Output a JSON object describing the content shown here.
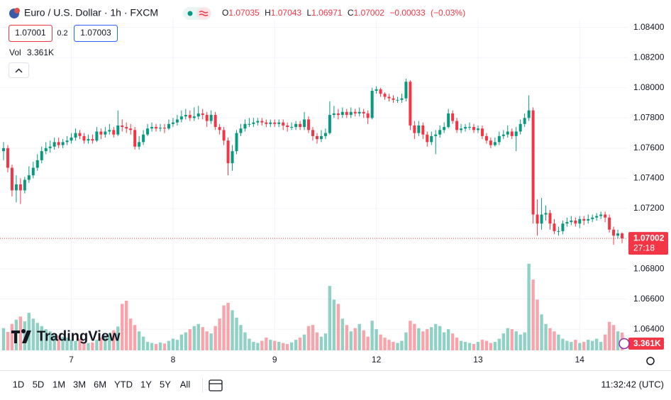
{
  "header": {
    "symbol": "Euro / U.S. Dollar · 1h · FXCM",
    "o": "O",
    "h": "H",
    "l": "L",
    "c": "C",
    "change": "−0.00033",
    "change_pct": "(−0.03%)",
    "bid": "1.07001",
    "spread": "0.2",
    "ask": "1.07003",
    "vol_label": "Vol",
    "countdown": "27:18"
  },
  "logo": "TradingView",
  "toolbar": {
    "ranges": [
      "1D",
      "5D",
      "1M",
      "3M",
      "6M",
      "YTD",
      "1Y",
      "5Y",
      "All"
    ],
    "clock": "11:32:42 (UTC)"
  },
  "chart_data": {
    "type": "candlestick",
    "categories": [
      null,
      null,
      null,
      null,
      null,
      null,
      null,
      null,
      null,
      null,
      null,
      null,
      null,
      null,
      null,
      null,
      "7",
      null,
      null,
      null,
      null,
      null,
      null,
      null,
      null,
      null,
      null,
      null,
      null,
      null,
      null,
      null,
      null,
      null,
      null,
      null,
      null,
      null,
      null,
      null,
      "8",
      null,
      null,
      null,
      null,
      null,
      null,
      null,
      null,
      null,
      null,
      null,
      null,
      null,
      null,
      null,
      null,
      null,
      null,
      null,
      null,
      null,
      null,
      null,
      "9",
      null,
      null,
      null,
      null,
      null,
      null,
      null,
      null,
      null,
      null,
      null,
      null,
      null,
      null,
      null,
      null,
      null,
      null,
      null,
      null,
      null,
      null,
      null,
      "12",
      null,
      null,
      null,
      null,
      null,
      null,
      null,
      null,
      null,
      null,
      null,
      null,
      null,
      null,
      null,
      null,
      null,
      null,
      null,
      null,
      null,
      null,
      null,
      "13",
      null,
      null,
      null,
      null,
      null,
      null,
      null,
      null,
      null,
      null,
      null,
      null,
      null,
      null,
      null,
      null,
      null,
      null,
      null,
      null,
      null,
      null,
      null,
      "14",
      null,
      null,
      null,
      null,
      null,
      null,
      null,
      null,
      null,
      null
    ],
    "open": [
      1.0758,
      1.076,
      1.0747,
      1.0732,
      1.0736,
      1.0732,
      1.0739,
      1.0742,
      1.0747,
      1.0752,
      1.0758,
      1.076,
      1.0761,
      1.0764,
      1.0762,
      1.0764,
      1.0765,
      1.0767,
      1.077,
      1.0768,
      1.0765,
      1.0766,
      1.0765,
      1.0771,
      1.0769,
      1.0771,
      1.0772,
      1.0769,
      1.0775,
      1.0774,
      1.0773,
      1.0772,
      1.0761,
      1.0764,
      1.0769,
      1.0773,
      1.0774,
      1.0773,
      1.07735,
      1.0773,
      1.0776,
      1.0777,
      1.0779,
      1.0781,
      1.0782,
      1.078,
      1.0781,
      1.0783,
      1.0782,
      1.0778,
      1.0782,
      1.0774,
      1.0772,
      1.0765,
      1.075,
      1.0758,
      1.077,
      1.0773,
      1.0776,
      1.0776,
      1.0777,
      1.0778,
      1.0777,
      1.0776,
      1.0777,
      1.0776,
      1.0777,
      1.0775,
      1.0774,
      1.0774,
      1.0776,
      1.0774,
      1.0779,
      1.0772,
      1.0768,
      1.0766,
      1.0768,
      1.077,
      1.0782,
      1.0783,
      1.0782,
      1.0784,
      1.0782,
      1.0784,
      1.0783,
      1.0784,
      1.0783,
      1.078,
      1.0798,
      1.0799,
      1.0796,
      1.0794,
      1.0793,
      1.0792,
      1.0792,
      1.0793,
      1.0804,
      1.0775,
      1.077,
      1.0775,
      1.0769,
      1.0764,
      1.0768,
      1.0769,
      1.0772,
      1.0774,
      1.0783,
      1.0778,
      1.0772,
      1.0773,
      1.0774,
      1.0774,
      1.0772,
      1.0773,
      1.0768,
      1.0765,
      1.0762,
      1.0764,
      1.0768,
      1.0769,
      1.0771,
      1.0768,
      1.0771,
      1.0776,
      1.078,
      1.0785,
      1.0716,
      1.071,
      1.0716,
      1.0717,
      1.071,
      1.0705,
      1.0705,
      1.071,
      1.0711,
      1.0712,
      1.071,
      1.0713,
      1.0712,
      1.0713,
      1.0714,
      1.0715,
      1.0716,
      1.0714,
      1.0706,
      1.0702,
      1.07035
    ],
    "high": [
      1.0764,
      1.0762,
      1.0749,
      1.0742,
      1.074,
      1.0741,
      1.0748,
      1.0751,
      1.0756,
      1.0761,
      1.0764,
      1.0765,
      1.0767,
      1.0767,
      1.0766,
      1.0768,
      1.077,
      1.0773,
      1.0772,
      1.077,
      1.0769,
      1.0769,
      1.0774,
      1.0773,
      1.0774,
      1.0776,
      1.0774,
      1.0785,
      1.0779,
      1.0777,
      1.0776,
      1.0774,
      1.0768,
      1.0772,
      1.0776,
      1.0777,
      1.0776,
      1.0776,
      1.0776,
      1.0779,
      1.078,
      1.0782,
      1.0785,
      1.0786,
      1.0785,
      1.0787,
      1.0788,
      1.0786,
      1.0784,
      1.0785,
      1.0784,
      1.0776,
      1.0774,
      1.0767,
      1.0762,
      1.0772,
      1.0776,
      1.0779,
      1.078,
      1.078,
      1.078,
      1.078,
      1.0779,
      1.0779,
      1.0779,
      1.0779,
      1.0779,
      1.0777,
      1.0777,
      1.0778,
      1.0778,
      1.0784,
      1.0781,
      1.0774,
      1.077,
      1.0772,
      1.0773,
      1.0791,
      1.0788,
      1.0786,
      1.0787,
      1.0786,
      1.0787,
      1.0786,
      1.0787,
      1.0786,
      1.0785,
      1.08,
      1.0801,
      1.08,
      1.0797,
      1.0796,
      1.0795,
      1.0794,
      1.0796,
      1.0806,
      1.0805,
      1.0778,
      1.0778,
      1.0777,
      1.0771,
      1.0771,
      1.0772,
      1.0775,
      1.0777,
      1.0786,
      1.0785,
      1.078,
      1.0776,
      1.0776,
      1.0777,
      1.0776,
      1.0775,
      1.0775,
      1.077,
      1.0767,
      1.0767,
      1.0771,
      1.0772,
      1.0775,
      1.0773,
      1.0774,
      1.0779,
      1.0783,
      1.0795,
      1.0787,
      1.0726,
      1.0727,
      1.0722,
      1.0719,
      1.0713,
      1.0708,
      1.0712,
      1.0714,
      1.0715,
      1.0714,
      1.0715,
      1.0715,
      1.0716,
      1.0716,
      1.0717,
      1.0718,
      1.0718,
      1.0716,
      1.0708,
      1.0706,
      1.07043
    ],
    "low": [
      1.0752,
      1.0744,
      1.0728,
      1.0724,
      1.0723,
      1.073,
      1.0737,
      1.074,
      1.0745,
      1.075,
      1.0756,
      1.0757,
      1.0759,
      1.076,
      1.076,
      1.0762,
      1.0763,
      1.0765,
      1.0766,
      1.0763,
      1.0763,
      1.0763,
      1.0764,
      1.0766,
      1.0767,
      1.0769,
      1.0767,
      1.0768,
      1.0771,
      1.077,
      1.0769,
      1.0759,
      1.0759,
      1.0762,
      1.0768,
      1.0771,
      1.0771,
      1.0771,
      1.077,
      1.0772,
      1.0774,
      1.0775,
      1.0777,
      1.0779,
      1.0778,
      1.0778,
      1.0779,
      1.0779,
      1.0774,
      1.0776,
      1.0772,
      1.0769,
      1.0762,
      1.0742,
      1.0745,
      1.0756,
      1.0768,
      1.0771,
      1.0774,
      1.0774,
      1.0775,
      1.0775,
      1.0774,
      1.0774,
      1.0774,
      1.0774,
      1.0772,
      1.0771,
      1.0772,
      1.0772,
      1.0772,
      1.0772,
      1.077,
      1.0765,
      1.0763,
      1.0764,
      1.0766,
      1.0769,
      1.078,
      1.0779,
      1.078,
      1.078,
      1.078,
      1.0781,
      1.0781,
      1.078,
      1.0776,
      1.0779,
      1.0796,
      1.0794,
      1.0792,
      1.0791,
      1.079,
      1.079,
      1.079,
      1.0791,
      1.0772,
      1.0766,
      1.0768,
      1.0766,
      1.0761,
      1.0762,
      1.0756,
      1.0767,
      1.077,
      1.0773,
      1.0776,
      1.077,
      1.077,
      1.0771,
      1.0772,
      1.077,
      1.077,
      1.0766,
      1.0763,
      1.076,
      1.0761,
      1.0762,
      1.0766,
      1.0767,
      1.0766,
      1.0758,
      1.0769,
      1.0774,
      1.0778,
      1.071,
      1.0702,
      1.0706,
      1.0712,
      1.0706,
      1.0703,
      1.0702,
      1.0703,
      1.0708,
      1.0709,
      1.0708,
      1.0707,
      1.0709,
      1.071,
      1.0711,
      1.0712,
      1.0713,
      1.0711,
      1.0704,
      1.0696,
      1.07,
      1.06971
    ],
    "close": [
      1.076,
      1.0747,
      1.0732,
      1.0736,
      1.0732,
      1.0739,
      1.0742,
      1.0747,
      1.0752,
      1.0758,
      1.076,
      1.0761,
      1.0764,
      1.0762,
      1.0764,
      1.0765,
      1.0767,
      1.077,
      1.0768,
      1.0765,
      1.0766,
      1.0765,
      1.0771,
      1.0769,
      1.0771,
      1.0772,
      1.0769,
      1.0775,
      1.0774,
      1.0773,
      1.0772,
      1.0761,
      1.0764,
      1.0769,
      1.0773,
      1.0774,
      1.0773,
      1.07735,
      1.0773,
      1.0776,
      1.0777,
      1.0779,
      1.0781,
      1.0782,
      1.078,
      1.0781,
      1.0783,
      1.0782,
      1.0778,
      1.0782,
      1.0774,
      1.0772,
      1.0765,
      1.075,
      1.0758,
      1.077,
      1.0773,
      1.0776,
      1.0776,
      1.0777,
      1.0778,
      1.0777,
      1.0776,
      1.0777,
      1.0776,
      1.0777,
      1.0775,
      1.0774,
      1.0774,
      1.0776,
      1.0774,
      1.0779,
      1.0772,
      1.0768,
      1.0766,
      1.0768,
      1.077,
      1.0782,
      1.0783,
      1.0782,
      1.0784,
      1.0782,
      1.0784,
      1.0783,
      1.0784,
      1.0783,
      1.078,
      1.0798,
      1.0799,
      1.0796,
      1.0794,
      1.0793,
      1.0792,
      1.0792,
      1.0793,
      1.0804,
      1.0775,
      1.077,
      1.0775,
      1.0769,
      1.0764,
      1.0768,
      1.0769,
      1.0772,
      1.0774,
      1.0783,
      1.0778,
      1.0772,
      1.0773,
      1.0774,
      1.0774,
      1.0772,
      1.0773,
      1.0768,
      1.0765,
      1.0762,
      1.0764,
      1.0768,
      1.0769,
      1.0771,
      1.0768,
      1.0771,
      1.0776,
      1.078,
      1.0785,
      1.0716,
      1.071,
      1.0716,
      1.0717,
      1.071,
      1.0705,
      1.0705,
      1.071,
      1.0711,
      1.0712,
      1.071,
      1.0713,
      1.0712,
      1.0713,
      1.0714,
      1.0715,
      1.0716,
      1.0714,
      1.0706,
      1.0702,
      1.07035,
      1.07002
    ],
    "volume": [
      4.2,
      3.5,
      5.0,
      5.8,
      6.4,
      5.5,
      7.1,
      6.0,
      5.2,
      4.6,
      4.0,
      3.6,
      3.0,
      2.8,
      2.6,
      2.4,
      2.0,
      1.8,
      2.2,
      1.6,
      1.4,
      1.5,
      2.0,
      2.4,
      2.8,
      3.2,
      3.8,
      4.5,
      8.8,
      9.4,
      6.0,
      4.8,
      3.6,
      2.6,
      1.6,
      1.4,
      1.2,
      1.5,
      1.3,
      1.8,
      2.2,
      2.0,
      3.0,
      3.4,
      4.0,
      4.6,
      5.0,
      4.4,
      3.6,
      3.2,
      4.6,
      6.0,
      8.5,
      9.0,
      7.6,
      6.2,
      4.8,
      3.4,
      2.2,
      1.6,
      1.4,
      1.8,
      2.4,
      2.0,
      1.8,
      1.6,
      1.4,
      1.2,
      1.5,
      2.0,
      2.4,
      3.0,
      4.6,
      4.8,
      3.4,
      2.6,
      3.2,
      12.2,
      9.6,
      8.8,
      6.0,
      4.8,
      3.6,
      4.2,
      5.0,
      3.8,
      2.6,
      5.6,
      4.0,
      3.0,
      2.4,
      2.0,
      1.6,
      1.4,
      1.8,
      3.4,
      5.6,
      5.0,
      4.2,
      3.6,
      4.0,
      4.4,
      5.0,
      4.6,
      3.4,
      4.0,
      3.2,
      2.4,
      1.8,
      1.6,
      1.4,
      1.2,
      1.6,
      2.0,
      1.8,
      1.4,
      1.6,
      2.2,
      3.2,
      4.2,
      4.0,
      3.6,
      3.0,
      3.4,
      16.4,
      13.4,
      9.6,
      6.8,
      5.0,
      4.2,
      3.6,
      3.0,
      2.2,
      1.8,
      1.6,
      2.0,
      1.4,
      1.6,
      2.0,
      1.8,
      2.2,
      1.6,
      3.0,
      5.4,
      4.8,
      3.6,
      3.361
    ],
    "last_volume_label": "3.361K",
    "ylim": [
      1.0626,
      1.0845
    ],
    "yticks": [
      {
        "value": 1.084,
        "label": "1.08400"
      },
      {
        "value": 1.082,
        "label": "1.08200"
      },
      {
        "value": 1.08,
        "label": "1.08000"
      },
      {
        "value": 1.078,
        "label": "1.07800"
      },
      {
        "value": 1.076,
        "label": "1.07600"
      },
      {
        "value": 1.074,
        "label": "1.07400"
      },
      {
        "value": 1.072,
        "label": "1.07200"
      },
      {
        "value": 1.068,
        "label": "1.06800"
      },
      {
        "value": 1.066,
        "label": "1.06600"
      },
      {
        "value": 1.064,
        "label": "1.06400"
      }
    ],
    "vlim": [
      0,
      20
    ],
    "up_color": "#089981",
    "down_color": "#f23645",
    "grid": true
  }
}
